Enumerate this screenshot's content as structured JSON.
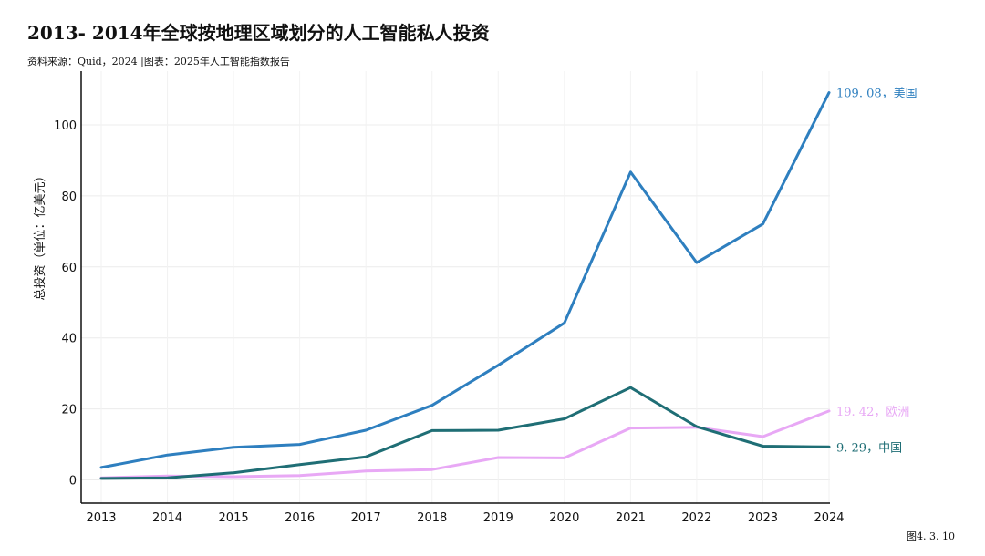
{
  "header": {
    "title": "2013- 2014年全球按地理区域划分的人工智能私人投资",
    "source": "资料来源：Quid，2024 |图表：2025年人工智能指数报告"
  },
  "footer": {
    "figure_number": "图4. 3. 10"
  },
  "chart_data": {
    "type": "line",
    "title": "2013- 2014年全球按地理区域划分的人工智能私人投资",
    "xlabel": "",
    "ylabel": "总投资（单位：亿美元）",
    "x": [
      2013,
      2014,
      2015,
      2016,
      2017,
      2018,
      2019,
      2020,
      2021,
      2022,
      2023,
      2024
    ],
    "ylim": [
      -6,
      115
    ],
    "yticks": [
      0,
      20,
      40,
      60,
      80,
      100
    ],
    "grid": true,
    "series": [
      {
        "name": "美国",
        "end_label": "109. 08，美国",
        "color": "#2e7fbf",
        "values": [
          3.5,
          7.0,
          9.2,
          10.0,
          14.0,
          21.0,
          32.3,
          44.2,
          86.7,
          61.2,
          72.1,
          109.08
        ]
      },
      {
        "name": "中国",
        "end_label": "9. 29，中国",
        "color": "#1f6e75",
        "values": [
          0.4,
          0.6,
          2.0,
          4.3,
          6.5,
          13.9,
          14.0,
          17.2,
          26.0,
          15.0,
          9.5,
          9.29
        ]
      },
      {
        "name": "欧洲",
        "end_label": "19. 42，欧洲",
        "color": "#e8a8f5",
        "values": [
          0.6,
          1.1,
          0.9,
          1.2,
          2.5,
          2.9,
          6.3,
          6.2,
          14.6,
          14.8,
          12.2,
          19.42
        ]
      }
    ]
  }
}
